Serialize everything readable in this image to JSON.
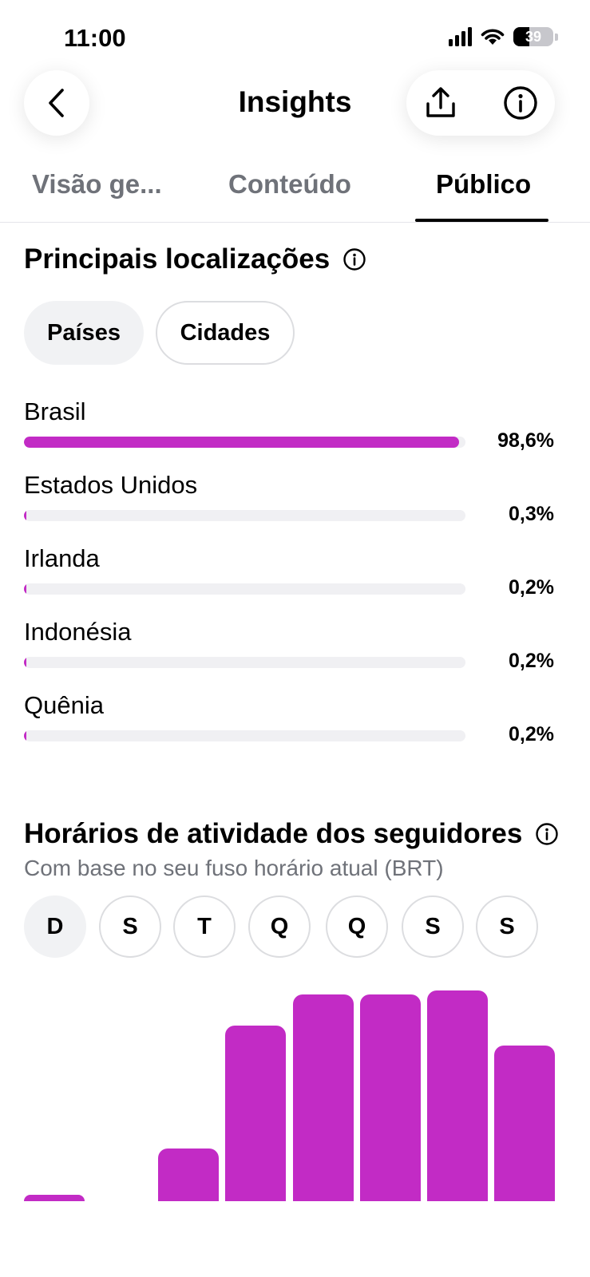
{
  "status_bar": {
    "time": "11:00",
    "battery": "39"
  },
  "nav": {
    "title": "Insights"
  },
  "tabs": [
    {
      "label": "Visão ge..."
    },
    {
      "label": "Conteúdo"
    },
    {
      "label": "Público"
    }
  ],
  "locations": {
    "title": "Principais localizações",
    "chips": [
      {
        "label": "Países"
      },
      {
        "label": "Cidades"
      }
    ],
    "items": [
      {
        "name": "Brasil",
        "value": "98,6%",
        "percent": 98.6
      },
      {
        "name": "Estados Unidos",
        "value": "0,3%",
        "percent": 0.3
      },
      {
        "name": "Irlanda",
        "value": "0,2%",
        "percent": 0.2
      },
      {
        "name": "Indonésia",
        "value": "0,2%",
        "percent": 0.2
      },
      {
        "name": "Quênia",
        "value": "0,2%",
        "percent": 0.2
      }
    ]
  },
  "activity": {
    "title": "Horários de atividade dos seguidores",
    "subtitle": "Com base no seu fuso horário atual (BRT)",
    "days": [
      {
        "label": "D"
      },
      {
        "label": "S"
      },
      {
        "label": "T"
      },
      {
        "label": "Q"
      },
      {
        "label": "Q"
      },
      {
        "label": "S"
      },
      {
        "label": "S"
      }
    ]
  },
  "chart_data": {
    "type": "bar",
    "values": [
      3,
      0,
      24,
      80,
      94,
      94,
      96,
      71
    ],
    "ylim": [
      0,
      100
    ]
  },
  "colors": {
    "accent": "#c22bc5",
    "track": "#f0f0f3",
    "muted_text": "#6f7279"
  }
}
